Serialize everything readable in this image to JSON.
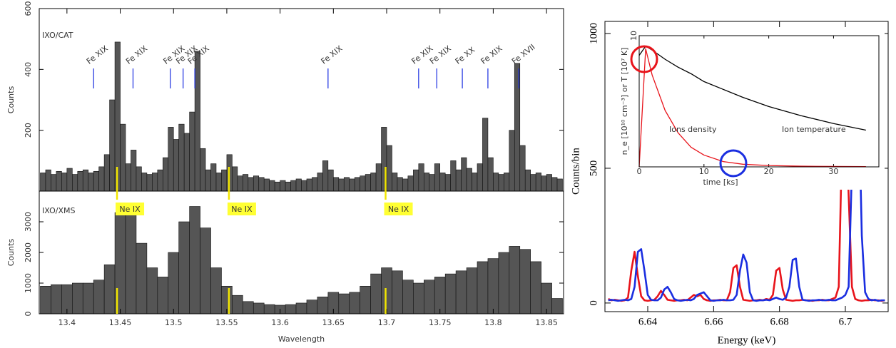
{
  "chart_data": [
    {
      "type": "histogram",
      "panel_label": "IXO/CAT",
      "ylabel": "Counts",
      "color": "#555555",
      "ylim": [
        0,
        600
      ],
      "yticks": [
        200,
        400,
        600
      ],
      "bins": [
        13.375,
        13.38,
        13.385,
        13.39,
        13.395,
        13.4,
        13.405,
        13.41,
        13.415,
        13.42,
        13.425,
        13.43,
        13.435,
        13.44,
        13.445,
        13.45,
        13.455,
        13.46,
        13.465,
        13.47,
        13.475,
        13.48,
        13.485,
        13.49,
        13.495,
        13.5,
        13.505,
        13.51,
        13.515,
        13.52,
        13.525,
        13.53,
        13.535,
        13.54,
        13.545,
        13.55,
        13.555,
        13.56,
        13.565,
        13.57,
        13.575,
        13.58,
        13.585,
        13.59,
        13.595,
        13.6,
        13.605,
        13.61,
        13.615,
        13.62,
        13.625,
        13.63,
        13.635,
        13.64,
        13.645,
        13.65,
        13.655,
        13.66,
        13.665,
        13.67,
        13.675,
        13.68,
        13.685,
        13.69,
        13.695,
        13.7,
        13.705,
        13.71,
        13.715,
        13.72,
        13.725,
        13.73,
        13.735,
        13.74,
        13.745,
        13.75,
        13.755,
        13.76,
        13.765,
        13.77,
        13.775,
        13.78,
        13.785,
        13.79,
        13.795,
        13.8,
        13.805,
        13.81,
        13.815,
        13.82,
        13.825,
        13.83,
        13.835,
        13.84,
        13.845,
        13.85,
        13.855,
        13.86,
        13.865
      ],
      "values": [
        60,
        70,
        55,
        65,
        60,
        75,
        55,
        65,
        70,
        60,
        65,
        80,
        120,
        300,
        490,
        220,
        90,
        135,
        80,
        60,
        55,
        60,
        70,
        110,
        210,
        170,
        220,
        190,
        260,
        460,
        140,
        70,
        90,
        60,
        70,
        120,
        80,
        50,
        55,
        45,
        50,
        45,
        40,
        35,
        30,
        35,
        30,
        35,
        40,
        35,
        40,
        45,
        60,
        100,
        70,
        45,
        40,
        45,
        40,
        45,
        50,
        55,
        60,
        90,
        210,
        150,
        60,
        45,
        40,
        50,
        70,
        90,
        60,
        55,
        90,
        60,
        55,
        100,
        70,
        110,
        75,
        60,
        90,
        240,
        110,
        60,
        55,
        60,
        200,
        420,
        150,
        70,
        55,
        60,
        50,
        55,
        45,
        40
      ],
      "line_ids": [
        {
          "label": "Fe XIX",
          "x": 13.425
        },
        {
          "label": "Fe XIX",
          "x": 13.462
        },
        {
          "label": "Fe XIX",
          "x": 13.497
        },
        {
          "label": "Fe XIX",
          "x": 13.509
        },
        {
          "label": "Fe XIX",
          "x": 13.52
        },
        {
          "label": "Fe XIX",
          "x": 13.645
        },
        {
          "label": "Fe XIX",
          "x": 13.73
        },
        {
          "label": "Fe XIX",
          "x": 13.747
        },
        {
          "label": "Fe XX",
          "x": 13.771
        },
        {
          "label": "Fe XIX",
          "x": 13.795
        },
        {
          "label": "Fe XVII",
          "x": 13.824
        }
      ],
      "ne_lines": [
        {
          "label": "Ne IX",
          "x": 13.447
        },
        {
          "label": "Ne IX",
          "x": 13.552
        },
        {
          "label": "Ne IX",
          "x": 13.699
        }
      ]
    },
    {
      "type": "histogram",
      "panel_label": "IXO/XMS",
      "ylabel": "Counts",
      "xlabel": "Wavelength",
      "color": "#555555",
      "xlim": [
        13.374,
        13.866
      ],
      "xticks": [
        13.4,
        13.45,
        13.5,
        13.55,
        13.6,
        13.65,
        13.7,
        13.75,
        13.8,
        13.85
      ],
      "ylim": [
        0,
        4000
      ],
      "yticks": [
        0,
        1000,
        2000,
        3000
      ],
      "bins": [
        13.375,
        13.385,
        13.395,
        13.405,
        13.415,
        13.425,
        13.435,
        13.445,
        13.455,
        13.465,
        13.475,
        13.485,
        13.495,
        13.505,
        13.515,
        13.525,
        13.535,
        13.545,
        13.555,
        13.565,
        13.575,
        13.585,
        13.595,
        13.605,
        13.615,
        13.625,
        13.635,
        13.645,
        13.655,
        13.665,
        13.675,
        13.685,
        13.695,
        13.705,
        13.715,
        13.725,
        13.735,
        13.745,
        13.755,
        13.765,
        13.775,
        13.785,
        13.795,
        13.805,
        13.815,
        13.825,
        13.835,
        13.845,
        13.855,
        13.865
      ],
      "values": [
        900,
        950,
        950,
        1000,
        1000,
        1100,
        1600,
        3300,
        3400,
        2300,
        1500,
        1200,
        2000,
        3000,
        3500,
        2800,
        1500,
        900,
        600,
        400,
        350,
        300,
        280,
        300,
        350,
        450,
        550,
        700,
        650,
        700,
        900,
        1300,
        1500,
        1400,
        1100,
        1000,
        1100,
        1200,
        1300,
        1400,
        1500,
        1700,
        1800,
        2000,
        2200,
        2100,
        1700,
        1000,
        500
      ]
    },
    {
      "type": "line",
      "xlabel": "Energy (keV)",
      "ylabel": "Counts/bin",
      "xlim": [
        6.627,
        6.713
      ],
      "xticks": [
        6.64,
        6.66,
        6.68,
        6.7
      ],
      "ylim": [
        -32,
        1045
      ],
      "yticks": [
        0,
        500,
        1000
      ],
      "x": [
        6.628,
        6.629,
        6.63,
        6.631,
        6.632,
        6.633,
        6.634,
        6.635,
        6.636,
        6.637,
        6.638,
        6.639,
        6.64,
        6.641,
        6.642,
        6.643,
        6.644,
        6.645,
        6.646,
        6.647,
        6.648,
        6.649,
        6.65,
        6.651,
        6.652,
        6.653,
        6.654,
        6.655,
        6.656,
        6.657,
        6.658,
        6.659,
        6.66,
        6.661,
        6.662,
        6.663,
        6.664,
        6.665,
        6.666,
        6.667,
        6.668,
        6.669,
        6.67,
        6.671,
        6.672,
        6.673,
        6.674,
        6.675,
        6.676,
        6.677,
        6.678,
        6.679,
        6.68,
        6.681,
        6.682,
        6.683,
        6.684,
        6.685,
        6.686,
        6.687,
        6.688,
        6.689,
        6.69,
        6.691,
        6.692,
        6.693,
        6.694,
        6.695,
        6.696,
        6.697,
        6.698,
        6.699,
        6.7,
        6.701,
        6.702,
        6.703,
        6.704,
        6.705,
        6.706,
        6.707,
        6.708,
        6.709,
        6.71,
        6.711,
        6.712
      ],
      "series": [
        {
          "color": "#e8141b",
          "values": [
            15,
            10,
            12,
            10,
            8,
            10,
            20,
            120,
            190,
            100,
            25,
            10,
            8,
            10,
            12,
            25,
            45,
            30,
            12,
            10,
            8,
            10,
            10,
            12,
            10,
            20,
            30,
            25,
            30,
            15,
            10,
            8,
            10,
            10,
            12,
            10,
            10,
            40,
            130,
            140,
            60,
            12,
            10,
            8,
            10,
            10,
            12,
            10,
            15,
            12,
            30,
            120,
            130,
            50,
            12,
            10,
            8,
            10,
            10,
            12,
            10,
            10,
            8,
            10,
            10,
            12,
            10,
            10,
            15,
            20,
            60,
            600,
            800,
            400,
            60,
            15,
            10,
            8,
            10,
            10,
            12,
            10,
            10,
            8,
            10
          ]
        },
        {
          "color": "#1a2ee0",
          "values": [
            10,
            12,
            10,
            8,
            10,
            12,
            10,
            15,
            60,
            190,
            200,
            120,
            30,
            12,
            10,
            10,
            20,
            50,
            60,
            40,
            15,
            10,
            8,
            10,
            12,
            10,
            15,
            30,
            35,
            40,
            25,
            10,
            8,
            10,
            10,
            12,
            10,
            10,
            12,
            30,
            120,
            180,
            150,
            40,
            10,
            8,
            10,
            10,
            12,
            10,
            15,
            20,
            15,
            12,
            20,
            60,
            160,
            165,
            60,
            12,
            10,
            8,
            10,
            10,
            12,
            10,
            10,
            12,
            10,
            10,
            15,
            20,
            30,
            60,
            500,
            1000,
            800,
            250,
            40,
            15,
            10,
            12,
            8,
            10,
            10
          ]
        }
      ]
    },
    {
      "type": "line",
      "xlabel": "time [ks]",
      "ylabel": "n_e [10¹⁰ cm⁻³] or T [10⁷ K]",
      "xlim": [
        0,
        37
      ],
      "xticks": [
        0,
        10,
        20,
        30
      ],
      "ylim": [
        0,
        10
      ],
      "yticks": [
        10
      ],
      "x": [
        0,
        1,
        2,
        4,
        6,
        8,
        10,
        13,
        16,
        20,
        25,
        30,
        35
      ],
      "series": [
        {
          "name": "Ions density",
          "color": "#e8141b",
          "values": [
            0,
            9.0,
            7.0,
            4.3,
            2.6,
            1.5,
            0.9,
            0.4,
            0.2,
            0.1,
            0.05,
            0.03,
            0.02
          ]
        },
        {
          "name": "Ion temperature",
          "color": "#000000",
          "values": [
            8.5,
            9.2,
            8.9,
            8.2,
            7.6,
            7.1,
            6.5,
            5.9,
            5.3,
            4.6,
            3.9,
            3.3,
            2.8
          ]
        }
      ]
    }
  ]
}
